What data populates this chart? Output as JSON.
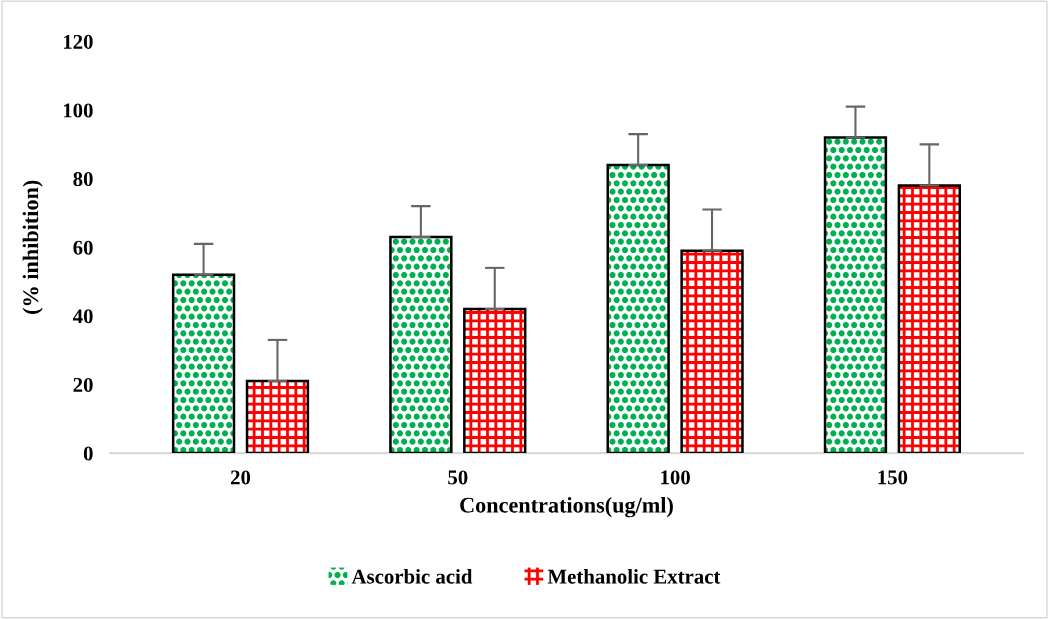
{
  "chart_data": {
    "type": "bar",
    "xlabel": "Concentrations(ug/ml)",
    "ylabel": "(% inhibition)",
    "categories": [
      "20",
      "50",
      "100",
      "150"
    ],
    "series": [
      {
        "name": "Ascorbic acid",
        "color": "#00b050",
        "values": [
          52,
          63,
          84,
          92
        ],
        "errors": [
          [
            52,
            61
          ],
          [
            63,
            72
          ],
          [
            84,
            93
          ],
          [
            92,
            101
          ]
        ]
      },
      {
        "name": "Methanolic Extract",
        "color": "#ff0000",
        "values": [
          21,
          42,
          59,
          78
        ],
        "errors": [
          [
            21,
            33
          ],
          [
            42,
            54
          ],
          [
            59,
            71
          ],
          [
            78,
            90
          ]
        ]
      }
    ],
    "ylim": [
      0,
      120
    ],
    "yticks": [
      0,
      20,
      40,
      60,
      80,
      100,
      120
    ],
    "grid": false,
    "legend": "bottom"
  }
}
